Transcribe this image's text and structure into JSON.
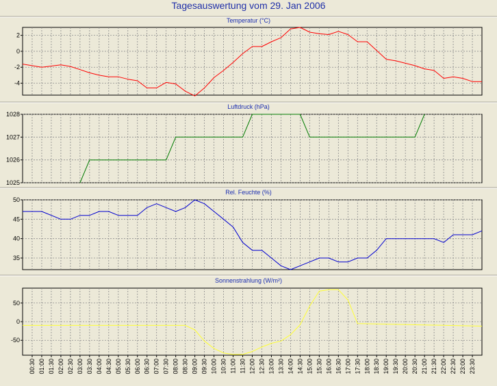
{
  "title": "Tagesauswertung vom 29. Jan 2006",
  "x_labels": [
    "00:30",
    "01:00",
    "01:30",
    "02:00",
    "02:30",
    "03:00",
    "03:30",
    "04:00",
    "04:30",
    "05:00",
    "05:30",
    "06:00",
    "06:30",
    "07:00",
    "07:30",
    "08:00",
    "08:30",
    "09:00",
    "09:30",
    "10:00",
    "10:30",
    "11:00",
    "11:30",
    "12:00",
    "12:30",
    "13:00",
    "13:30",
    "14:00",
    "14:30",
    "15:00",
    "15:30",
    "16:00",
    "16:30",
    "17:00",
    "17:30",
    "18:00",
    "18:30",
    "19:00",
    "19:30",
    "20:00",
    "20:30",
    "21:00",
    "21:30",
    "22:00",
    "22:30",
    "23:00",
    "23:30"
  ],
  "chart_data": [
    {
      "type": "line",
      "title": "Temperatur (°C)",
      "ylim": [
        -5.5,
        3
      ],
      "yticks": [
        -4,
        -2,
        0,
        2
      ],
      "color": "#ff0000",
      "x": [
        "00:00",
        "01:00",
        "02:00",
        "02:30",
        "03:00",
        "03:30",
        "04:00",
        "04:30",
        "05:00",
        "05:30",
        "06:00",
        "06:30",
        "07:00",
        "07:30",
        "08:00",
        "08:30",
        "09:00",
        "09:30",
        "10:00",
        "10:30",
        "11:00",
        "11:30",
        "12:00",
        "12:30",
        "13:00",
        "13:30",
        "14:00",
        "14:30",
        "15:00",
        "15:30",
        "16:00",
        "16:30",
        "17:00",
        "17:30",
        "18:00",
        "18:30",
        "19:00",
        "19:30",
        "20:00",
        "20:30",
        "21:00",
        "21:30",
        "22:00",
        "22:30",
        "23:00",
        "23:30",
        "24:00"
      ],
      "values": [
        -1.6,
        -2.0,
        -1.7,
        -1.9,
        -2.3,
        -2.7,
        -3.0,
        -3.2,
        -3.2,
        -3.5,
        -3.7,
        -4.6,
        -4.6,
        -3.9,
        -4.1,
        -5.0,
        -5.6,
        -4.6,
        -3.3,
        -2.4,
        -1.4,
        -0.3,
        0.6,
        0.6,
        1.2,
        1.7,
        2.8,
        3.0,
        2.4,
        2.2,
        2.1,
        2.5,
        2.1,
        1.2,
        1.2,
        0.1,
        -1.0,
        -1.2,
        -1.5,
        -1.8,
        -2.2,
        -2.4,
        -3.4,
        -3.2,
        -3.4,
        -3.8,
        -3.8
      ]
    },
    {
      "type": "line",
      "title": "Luftdruck (hPa)",
      "ylim": [
        1025,
        1028
      ],
      "yticks": [
        1025,
        1026,
        1027,
        1028
      ],
      "color": "#007a00",
      "x": [
        "03:00",
        "03:30",
        "07:30",
        "08:00",
        "11:30",
        "12:00",
        "14:30",
        "15:00",
        "20:30",
        "21:00"
      ],
      "values": [
        1025,
        1026,
        1026,
        1027,
        1027,
        1028,
        1028,
        1027,
        1027,
        1028
      ]
    },
    {
      "type": "line",
      "title": "Rel. Feuchte (%)",
      "ylim": [
        32,
        50
      ],
      "yticks": [
        35,
        40,
        45,
        50
      ],
      "color": "#0000d0",
      "x": [
        "00:00",
        "01:00",
        "02:00",
        "02:30",
        "03:00",
        "03:30",
        "04:00",
        "04:30",
        "05:00",
        "05:30",
        "06:00",
        "06:30",
        "07:00",
        "07:30",
        "08:00",
        "08:30",
        "09:00",
        "09:30",
        "10:00",
        "10:30",
        "11:00",
        "11:30",
        "12:00",
        "12:30",
        "13:00",
        "13:30",
        "14:00",
        "14:30",
        "15:00",
        "15:30",
        "16:00",
        "16:30",
        "17:00",
        "17:30",
        "18:00",
        "18:30",
        "19:00",
        "19:30",
        "20:00",
        "20:30",
        "21:00",
        "21:30",
        "22:00",
        "22:30",
        "23:00",
        "23:30",
        "24:00"
      ],
      "values": [
        47,
        47,
        45,
        45,
        46,
        46,
        47,
        47,
        46,
        46,
        46,
        48,
        49,
        48,
        47,
        48,
        50,
        49,
        47,
        45,
        43,
        39,
        37,
        37,
        35,
        33,
        32,
        33,
        34,
        35,
        35,
        34,
        34,
        35,
        35,
        37,
        40,
        40,
        40,
        40,
        40,
        40,
        39,
        41,
        41,
        41,
        42
      ]
    },
    {
      "type": "line",
      "title": "Sonnenstrahlung (W/m²)",
      "ylim": [
        -90,
        90
      ],
      "yticks": [
        -50,
        0,
        50
      ],
      "color": "#ffff33",
      "x": [
        "00:00",
        "08:30",
        "09:00",
        "09:30",
        "10:00",
        "10:30",
        "11:00",
        "11:30",
        "12:00",
        "12:30",
        "13:00",
        "13:30",
        "14:00",
        "14:30",
        "15:00",
        "15:30",
        "16:00",
        "16:30",
        "17:00",
        "17:30",
        "24:00"
      ],
      "values": [
        -10,
        -10,
        -22,
        -52,
        -72,
        -84,
        -88,
        -88,
        -80,
        -68,
        -58,
        -52,
        -35,
        -8,
        42,
        82,
        86,
        86,
        58,
        -5,
        -12
      ]
    }
  ]
}
